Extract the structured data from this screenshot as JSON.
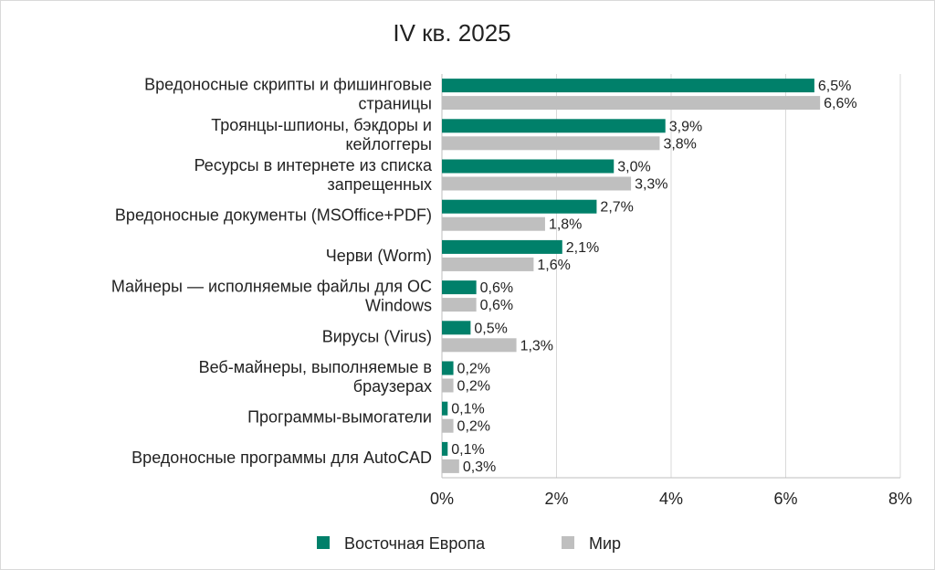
{
  "chart_data": {
    "type": "bar",
    "orientation": "horizontal",
    "title": "IV кв. 2025",
    "categories": [
      [
        "Вредоносные скрипты и фишинговые",
        "страницы"
      ],
      [
        "Троянцы-шпионы, бэкдоры и",
        "кейлоггеры"
      ],
      [
        "Ресурсы в интернете из списка",
        "запрещенных"
      ],
      [
        "Вредоносные документы (MSOffice+PDF)"
      ],
      [
        "Черви (Worm)"
      ],
      [
        "Майнеры — исполняемые файлы для ОС",
        "Windows"
      ],
      [
        "Вирусы (Virus)"
      ],
      [
        "Веб-майнеры, выполняемые в",
        "браузерах"
      ],
      [
        "Программы-вымогатели"
      ],
      [
        "Вредоносные программы для AutoCAD"
      ]
    ],
    "series": [
      {
        "name": "Восточная Европа",
        "color": "#00806a",
        "values": [
          6.5,
          3.9,
          3.0,
          2.7,
          2.1,
          0.6,
          0.5,
          0.2,
          0.1,
          0.1
        ],
        "labels": [
          "6,5%",
          "3,9%",
          "3,0%",
          "2,7%",
          "2,1%",
          "0,6%",
          "0,5%",
          "0,2%",
          "0,1%",
          "0,1%"
        ]
      },
      {
        "name": "Мир",
        "color": "#bfbfbf",
        "values": [
          6.6,
          3.8,
          3.3,
          1.8,
          1.6,
          0.6,
          1.3,
          0.2,
          0.2,
          0.3
        ],
        "labels": [
          "6,6%",
          "3,8%",
          "3,3%",
          "1,8%",
          "1,6%",
          "0,6%",
          "1,3%",
          "0,2%",
          "0,2%",
          "0,3%"
        ]
      }
    ],
    "xlim": [
      0,
      8
    ],
    "xticks": [
      0,
      2,
      4,
      6,
      8
    ],
    "xtick_labels": [
      "0%",
      "2%",
      "4%",
      "6%",
      "8%"
    ],
    "xlabel": "",
    "ylabel": "",
    "grid": "vertical",
    "legend": "bottom-center"
  }
}
